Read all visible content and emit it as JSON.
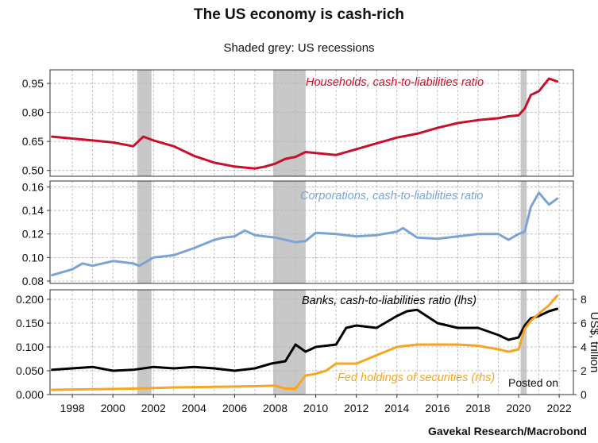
{
  "title": "The US economy is cash-rich",
  "subtitle": "Shaded grey: US recessions",
  "source": "Gavekal Research/Macrobond",
  "watermark": "Posted on",
  "colors": {
    "households": "#c8102e",
    "corporations": "#7ba4d6",
    "banks": "#000000",
    "fed": "#f5a623",
    "recession": "#c8c8c8",
    "grid": "#b5b5b5"
  },
  "chart_data": [
    {
      "type": "line",
      "title": "",
      "xlabel": "",
      "ylabel": "",
      "ylim": [
        0.47,
        1.02
      ],
      "yticks": [
        "0.95",
        "0.80",
        "0.65",
        "0.50"
      ],
      "ytick_values": [
        0.95,
        0.8,
        0.65,
        0.5
      ],
      "recessions": [
        [
          2001.2,
          2001.9
        ],
        [
          2007.9,
          2009.5
        ],
        [
          2020.1,
          2020.4
        ]
      ],
      "series": [
        {
          "name": "Households, cash-to-liabilities ratio",
          "color": "#c8102e",
          "x": [
            1997,
            1998,
            1999,
            2000,
            2001,
            2001.5,
            2002,
            2003,
            2004,
            2005,
            2006,
            2007,
            2007.5,
            2008,
            2008.5,
            2009,
            2009.5,
            2010,
            2011,
            2012,
            2013,
            2014,
            2015,
            2016,
            2017,
            2018,
            2019,
            2019.5,
            2020,
            2020.3,
            2020.6,
            2021,
            2021.5,
            2021.9
          ],
          "y": [
            0.675,
            0.665,
            0.655,
            0.645,
            0.625,
            0.675,
            0.655,
            0.625,
            0.575,
            0.54,
            0.52,
            0.51,
            0.52,
            0.535,
            0.56,
            0.57,
            0.595,
            0.59,
            0.58,
            0.61,
            0.64,
            0.67,
            0.69,
            0.72,
            0.745,
            0.76,
            0.77,
            0.78,
            0.785,
            0.82,
            0.89,
            0.91,
            0.975,
            0.96
          ]
        }
      ]
    },
    {
      "type": "line",
      "title": "",
      "xlabel": "",
      "ylabel": "",
      "ylim": [
        0.078,
        0.165
      ],
      "yticks": [
        "0.16",
        "0.14",
        "0.12",
        "0.10",
        "0.08"
      ],
      "ytick_values": [
        0.16,
        0.14,
        0.12,
        0.1,
        0.08
      ],
      "recessions": [
        [
          2001.2,
          2001.9
        ],
        [
          2007.9,
          2009.5
        ],
        [
          2020.1,
          2020.4
        ]
      ],
      "series": [
        {
          "name": "Corporations, cash-to-liabilities ratio",
          "color": "#7ba4d6",
          "x": [
            1997,
            1998,
            1998.5,
            1999,
            2000,
            2001,
            2001.3,
            2002,
            2003,
            2004,
            2005,
            2005.5,
            2006,
            2006.5,
            2007,
            2008,
            2009,
            2009.5,
            2010,
            2011,
            2012,
            2013,
            2014,
            2014.3,
            2015,
            2016,
            2017,
            2018,
            2019,
            2019.5,
            2020,
            2020.3,
            2020.6,
            2021,
            2021.5,
            2021.9
          ],
          "y": [
            0.085,
            0.09,
            0.095,
            0.093,
            0.097,
            0.095,
            0.093,
            0.1,
            0.102,
            0.108,
            0.115,
            0.117,
            0.118,
            0.123,
            0.119,
            0.117,
            0.113,
            0.114,
            0.121,
            0.12,
            0.118,
            0.119,
            0.122,
            0.125,
            0.117,
            0.116,
            0.118,
            0.12,
            0.12,
            0.115,
            0.12,
            0.122,
            0.143,
            0.155,
            0.145,
            0.15
          ]
        }
      ]
    },
    {
      "type": "line",
      "title": "",
      "xlabel": "",
      "ylabel": "",
      "ylim": [
        0,
        0.22
      ],
      "ylim_right": [
        0,
        8.8
      ],
      "yticks": [
        "0.200",
        "0.150",
        "0.100",
        "0.050",
        "0.000"
      ],
      "ytick_values": [
        0.2,
        0.15,
        0.1,
        0.05,
        0.0
      ],
      "yticks_right": [
        "8",
        "6",
        "4",
        "2",
        "0"
      ],
      "ytick_right_values": [
        8,
        6,
        4,
        2,
        0
      ],
      "ylabel_right": "US$, trillion",
      "xticks": [
        "1998",
        "2000",
        "2002",
        "2004",
        "2006",
        "2008",
        "2010",
        "2012",
        "2014",
        "2016",
        "2018",
        "2020",
        "2022"
      ],
      "xtick_values": [
        1998,
        2000,
        2002,
        2004,
        2006,
        2008,
        2010,
        2012,
        2014,
        2016,
        2018,
        2020,
        2022
      ],
      "recessions": [
        [
          2001.2,
          2001.9
        ],
        [
          2007.9,
          2009.5
        ],
        [
          2020.1,
          2020.4
        ]
      ],
      "series": [
        {
          "name": "Banks, cash-to-liabilities ratio (lhs)",
          "color": "#000000",
          "axis": "left",
          "x": [
            1997,
            1998,
            1999,
            2000,
            2001,
            2002,
            2003,
            2004,
            2005,
            2006,
            2007,
            2007.8,
            2008.5,
            2009,
            2009.5,
            2010,
            2011,
            2011.5,
            2012,
            2013,
            2014,
            2014.5,
            2015,
            2016,
            2017,
            2018,
            2019,
            2019.5,
            2020,
            2020.3,
            2020.6,
            2021,
            2021.5,
            2021.9
          ],
          "y": [
            0.052,
            0.055,
            0.058,
            0.05,
            0.052,
            0.058,
            0.055,
            0.058,
            0.055,
            0.05,
            0.055,
            0.065,
            0.07,
            0.105,
            0.09,
            0.1,
            0.105,
            0.14,
            0.145,
            0.14,
            0.165,
            0.175,
            0.178,
            0.15,
            0.14,
            0.14,
            0.125,
            0.115,
            0.12,
            0.145,
            0.16,
            0.165,
            0.175,
            0.18
          ]
        },
        {
          "name": "Fed holdings of securities  (rhs)",
          "color": "#f5a623",
          "axis": "right",
          "x": [
            1997,
            1999,
            2001,
            2003,
            2005,
            2007,
            2008,
            2008.5,
            2009,
            2009.5,
            2010,
            2010.5,
            2011,
            2012,
            2013,
            2014,
            2015,
            2016,
            2017,
            2018,
            2019,
            2019.5,
            2020,
            2020.3,
            2020.6,
            2021,
            2021.5,
            2021.9
          ],
          "y": [
            0.4,
            0.45,
            0.5,
            0.6,
            0.65,
            0.7,
            0.75,
            0.5,
            0.5,
            1.6,
            1.75,
            2.0,
            2.6,
            2.6,
            3.3,
            4.0,
            4.2,
            4.2,
            4.2,
            4.1,
            3.8,
            3.6,
            3.8,
            5.5,
            6.2,
            6.8,
            7.5,
            8.3
          ]
        }
      ]
    }
  ]
}
